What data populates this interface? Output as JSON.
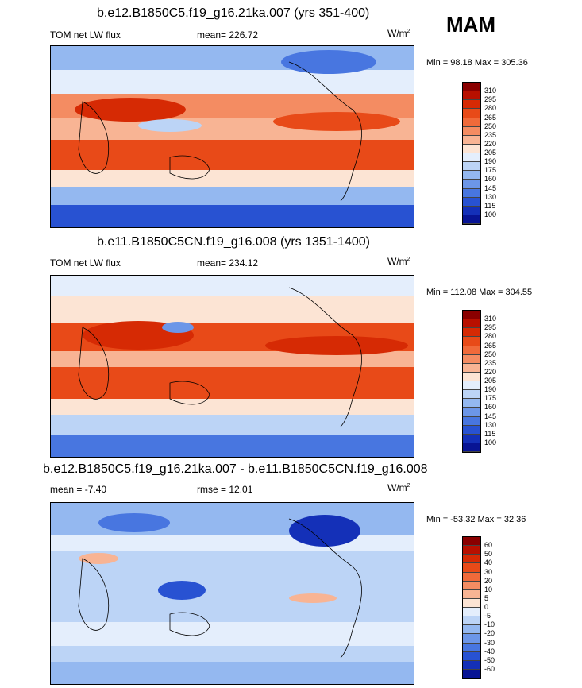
{
  "season": "MAM",
  "panels": [
    {
      "title": "b.e12.B1850C5.f19_g16.21ka.007 (yrs 351-400)",
      "left_label": "TOM net LW flux",
      "center_label": "mean= 226.72",
      "units": "W/m",
      "units_sup": "2",
      "minmax": "Min =  98.18 Max = 305.36",
      "variant": "lgm",
      "colorbar_levels": [
        "310",
        "295",
        "280",
        "265",
        "250",
        "235",
        "220",
        "205",
        "190",
        "175",
        "160",
        "145",
        "130",
        "115",
        "100"
      ],
      "colorbar_colors": [
        "#8a0000",
        "#b81000",
        "#d62a04",
        "#e84a18",
        "#f06a3a",
        "#f48c62",
        "#f8b494",
        "#fce4d4",
        "#e4eefc",
        "#bcd4f6",
        "#94b8f0",
        "#6c96e8",
        "#4876e0",
        "#2852d2",
        "#1430b8",
        "#081494"
      ]
    },
    {
      "title": "b.e11.B1850C5CN.f19_g16.008 (yrs 1351-1400)",
      "left_label": "TOM net LW flux",
      "center_label": "mean= 234.12",
      "units": "W/m",
      "units_sup": "2",
      "minmax": "Min = 112.08 Max = 304.55",
      "variant": "pi",
      "colorbar_levels": [
        "310",
        "295",
        "280",
        "265",
        "250",
        "235",
        "220",
        "205",
        "190",
        "175",
        "160",
        "145",
        "130",
        "115",
        "100"
      ],
      "colorbar_colors": [
        "#8a0000",
        "#b81000",
        "#d62a04",
        "#e84a18",
        "#f06a3a",
        "#f48c62",
        "#f8b494",
        "#fce4d4",
        "#e4eefc",
        "#bcd4f6",
        "#94b8f0",
        "#6c96e8",
        "#4876e0",
        "#2852d2",
        "#1430b8",
        "#081494"
      ]
    },
    {
      "title": "b.e12.B1850C5.f19_g16.21ka.007 - b.e11.B1850C5CN.f19_g16.008",
      "left_label": "mean =  -7.40",
      "center_label": "rmse =  12.01",
      "units": "W/m",
      "units_sup": "2",
      "minmax": "Min = -53.32 Max =  32.36",
      "variant": "diff",
      "colorbar_levels": [
        "60",
        "50",
        "40",
        "30",
        "20",
        "10",
        "5",
        "0",
        "-5",
        "-10",
        "-20",
        "-30",
        "-40",
        "-50",
        "-60"
      ],
      "colorbar_colors": [
        "#8a0000",
        "#b81000",
        "#d62a04",
        "#e84a18",
        "#f06a3a",
        "#f48c62",
        "#f8b494",
        "#fce4d4",
        "#e4eefc",
        "#bcd4f6",
        "#94b8f0",
        "#6c96e8",
        "#4876e0",
        "#2852d2",
        "#1430b8",
        "#081494"
      ]
    }
  ]
}
